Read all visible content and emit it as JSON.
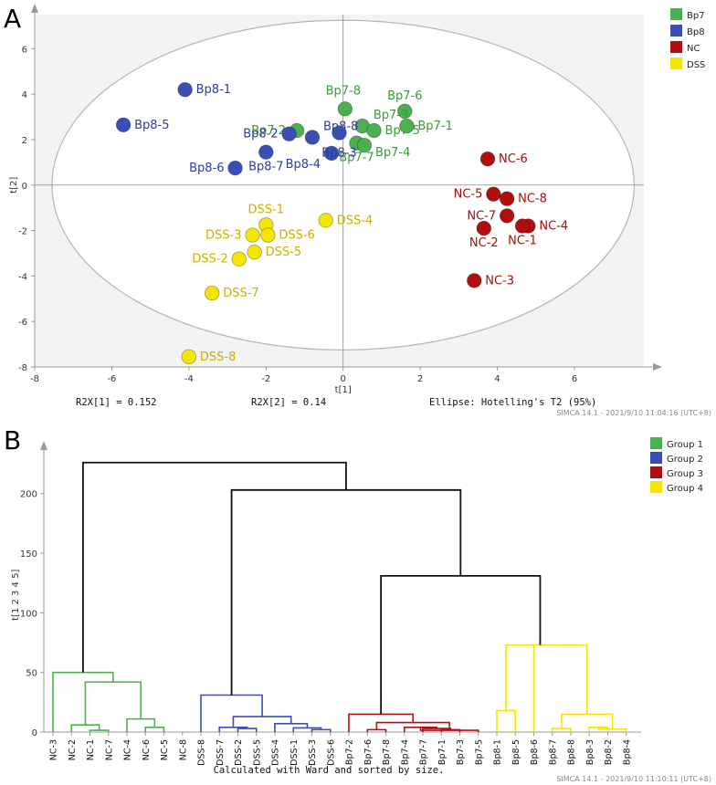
{
  "panels": {
    "a": "A",
    "b": "B"
  },
  "colors": {
    "Bp7": "#4caf50",
    "Bp8": "#3a4fb5",
    "NC": "#b00f0f",
    "DSS": "#f5e600",
    "Bp7_text": "#3a9a3a",
    "Bp8_text": "#2f3d9a",
    "NC_text": "#9c0e0e",
    "DSS_text": "#c9b000",
    "g1": "#4caf50",
    "g2": "#3a4fb5",
    "g3": "#b00f0f",
    "g4": "#f5e600",
    "root": "#111111"
  },
  "chart_data": [
    {
      "type": "scatter",
      "title": "",
      "xlabel": "t[1]",
      "ylabel": "t[2]",
      "xlim": [
        -8,
        7.8
      ],
      "ylim": [
        -8,
        7.5
      ],
      "xticks": [
        -8,
        -6,
        -4,
        -2,
        0,
        2,
        4,
        6
      ],
      "yticks": [
        -8,
        -6,
        -4,
        -2,
        0,
        2,
        4,
        6
      ],
      "ellipse": {
        "rx": 7.55,
        "ry": 7.25,
        "label": "Ellipse: Hotelling's T2 (95%)"
      },
      "stats": {
        "r2x1": "R2X[1] = 0.152",
        "r2x2": "R2X[2] = 0.14"
      },
      "footer": "SIMCA 14.1 - 2021/9/10 11:04:16 (UTC+8)",
      "legend": [
        {
          "name": "Bp7",
          "key": "Bp7"
        },
        {
          "name": "Bp8",
          "key": "Bp8"
        },
        {
          "name": "NC",
          "key": "NC"
        },
        {
          "name": "DSS",
          "key": "DSS"
        }
      ],
      "points": [
        {
          "label": "Bp7-8",
          "group": "Bp7",
          "x": 0.05,
          "y": 3.35,
          "pos": "tl"
        },
        {
          "label": "Bp7-6",
          "group": "Bp7",
          "x": 1.6,
          "y": 3.25,
          "pos": "t"
        },
        {
          "label": "Bp7 2",
          "group": "Bp7",
          "x": -1.2,
          "y": 2.4,
          "pos": "l"
        },
        {
          "label": "Bp7-3",
          "group": "Bp7",
          "x": 0.5,
          "y": 2.6,
          "pos": "tr"
        },
        {
          "label": "Bp7-5",
          "group": "Bp7",
          "x": 0.8,
          "y": 2.4,
          "pos": "r"
        },
        {
          "label": "Bp7-1",
          "group": "Bp7",
          "x": 1.65,
          "y": 2.6,
          "pos": "r"
        },
        {
          "label": "Bp7-7",
          "group": "Bp7",
          "x": 0.35,
          "y": 1.85,
          "pos": "b"
        },
        {
          "label": "Bp7-4",
          "group": "Bp7",
          "x": 0.55,
          "y": 1.75,
          "pos": "br"
        },
        {
          "label": "Bp8-1",
          "group": "Bp8",
          "x": -4.1,
          "y": 4.2,
          "pos": "r"
        },
        {
          "label": "Bp8-5",
          "group": "Bp8",
          "x": -5.7,
          "y": 2.65,
          "pos": "r"
        },
        {
          "label": "Bp8-2",
          "group": "Bp8",
          "x": -1.4,
          "y": 2.25,
          "pos": "l"
        },
        {
          "label": "Bp8-8",
          "group": "Bp8",
          "x": -0.8,
          "y": 2.1,
          "pos": "tr"
        },
        {
          "label": "Bp8-6",
          "group": "Bp8",
          "x": -2.8,
          "y": 0.75,
          "pos": "l"
        },
        {
          "label": "Bp8-7",
          "group": "Bp8",
          "x": -2.0,
          "y": 1.45,
          "pos": "b"
        },
        {
          "label": "Bp8-4",
          "group": "Bp8",
          "x": -0.3,
          "y": 1.4,
          "pos": "bl"
        },
        {
          "label": "Bp8-3",
          "group": "Bp8",
          "x": -0.1,
          "y": 2.3,
          "pos": "b2"
        },
        {
          "label": "NC-6",
          "group": "NC",
          "x": 3.75,
          "y": 1.15,
          "pos": "r"
        },
        {
          "label": "NC-5",
          "group": "NC",
          "x": 3.9,
          "y": -0.4,
          "pos": "l"
        },
        {
          "label": "NC-8",
          "group": "NC",
          "x": 4.25,
          "y": -0.6,
          "pos": "r"
        },
        {
          "label": "NC-7",
          "group": "NC",
          "x": 4.25,
          "y": -1.35,
          "pos": "l"
        },
        {
          "label": "NC-4",
          "group": "NC",
          "x": 4.8,
          "y": -1.8,
          "pos": "r"
        },
        {
          "label": "NC-2",
          "group": "NC",
          "x": 3.65,
          "y": -1.9,
          "pos": "b"
        },
        {
          "label": "NC-1",
          "group": "NC",
          "x": 4.65,
          "y": -1.8,
          "pos": "b"
        },
        {
          "label": "NC-3",
          "group": "NC",
          "x": 3.4,
          "y": -4.2,
          "pos": "r"
        },
        {
          "label": "DSS-1",
          "group": "DSS",
          "x": -2.0,
          "y": -1.75,
          "pos": "t"
        },
        {
          "label": "DSS-4",
          "group": "DSS",
          "x": -0.45,
          "y": -1.55,
          "pos": "r"
        },
        {
          "label": "DSS-3",
          "group": "DSS",
          "x": -2.35,
          "y": -2.2,
          "pos": "l"
        },
        {
          "label": "DSS-6",
          "group": "DSS",
          "x": -1.95,
          "y": -2.2,
          "pos": "r"
        },
        {
          "label": "DSS-5",
          "group": "DSS",
          "x": -2.3,
          "y": -2.95,
          "pos": "r"
        },
        {
          "label": "DSS-2",
          "group": "DSS",
          "x": -2.7,
          "y": -3.25,
          "pos": "l"
        },
        {
          "label": "DSS-7",
          "group": "DSS",
          "x": -3.4,
          "y": -4.75,
          "pos": "r"
        },
        {
          "label": "DSS-8",
          "group": "DSS",
          "x": -4.0,
          "y": -7.55,
          "pos": "r"
        }
      ]
    },
    {
      "type": "dendrogram",
      "title": "",
      "xlabel": "Calculated with Ward and sorted by size.",
      "ylabel": "t[1 2 3 4 5]",
      "ylim": [
        0,
        235
      ],
      "yticks": [
        0,
        50,
        100,
        150,
        200
      ],
      "footer": "SIMCA 14.1 - 2021/9/10 11:10:11 (UTC+8)",
      "legend": [
        {
          "name": "Group 1",
          "key": "g1"
        },
        {
          "name": "Group 2",
          "key": "g2"
        },
        {
          "name": "Group 3",
          "key": "g3"
        },
        {
          "name": "Group 4",
          "key": "g4"
        }
      ],
      "leaves": [
        {
          "label": "NC-3",
          "group": "g1"
        },
        {
          "label": "NC-2",
          "group": "g1"
        },
        {
          "label": "NC-1",
          "group": "g1"
        },
        {
          "label": "NC-7",
          "group": "g1"
        },
        {
          "label": "NC-4",
          "group": "g1"
        },
        {
          "label": "NC-6",
          "group": "g1"
        },
        {
          "label": "NC-5",
          "group": "g1"
        },
        {
          "label": "NC-8",
          "group": "g1"
        },
        {
          "label": "DSS-8",
          "group": "g2"
        },
        {
          "label": "DSS-7",
          "group": "g2"
        },
        {
          "label": "DSS-2",
          "group": "g2"
        },
        {
          "label": "DSS-5",
          "group": "g2"
        },
        {
          "label": "DSS-4",
          "group": "g2"
        },
        {
          "label": "DSS-1",
          "group": "g2"
        },
        {
          "label": "DSS-3",
          "group": "g2"
        },
        {
          "label": "DSS-6",
          "group": "g2"
        },
        {
          "label": "Bp7-2",
          "group": "g3"
        },
        {
          "label": "Bp7-6",
          "group": "g3"
        },
        {
          "label": "Bp7-8",
          "group": "g3"
        },
        {
          "label": "Bp7-4",
          "group": "g3"
        },
        {
          "label": "Bp7-7",
          "group": "g3"
        },
        {
          "label": "Bp7-1",
          "group": "g3"
        },
        {
          "label": "Bp7-3",
          "group": "g3"
        },
        {
          "label": "Bp7-5",
          "group": "g3"
        },
        {
          "label": "Bp8-1",
          "group": "g4"
        },
        {
          "label": "Bp8-5",
          "group": "g4"
        },
        {
          "label": "Bp8-6",
          "group": "g4"
        },
        {
          "label": "Bp8-7",
          "group": "g4"
        },
        {
          "label": "Bp8-8",
          "group": "g4"
        },
        {
          "label": "Bp8-3",
          "group": "g4"
        },
        {
          "label": "Bp8-2",
          "group": "g4"
        },
        {
          "label": "Bp8-4",
          "group": "g4"
        }
      ],
      "merges": [
        {
          "a": "L5",
          "b": "L6",
          "h": 4,
          "g": "g1"
        },
        {
          "a": "L2",
          "b": "L3",
          "h": 1.5,
          "g": "g1"
        },
        {
          "a": "L1",
          "b": "M1",
          "h": 6,
          "g": "g1"
        },
        {
          "a": "L4",
          "b": "M0",
          "h": 11,
          "g": "g1"
        },
        {
          "a": "M2",
          "b": "M3",
          "h": 42,
          "g": "g1"
        },
        {
          "a": "L0",
          "b": "M4",
          "h": 50,
          "g": "g1"
        },
        {
          "a": "L10",
          "b": "L11",
          "h": 3,
          "g": "g2"
        },
        {
          "a": "L14",
          "b": "L15",
          "h": 2,
          "g": "g2"
        },
        {
          "a": "L13",
          "b": "M7",
          "h": 3.5,
          "g": "g2"
        },
        {
          "a": "L12",
          "b": "M8",
          "h": 7,
          "g": "g2"
        },
        {
          "a": "L9",
          "b": "M6",
          "h": 4,
          "g": "g2"
        },
        {
          "a": "M10",
          "b": "M9",
          "h": 13,
          "g": "g2"
        },
        {
          "a": "L8",
          "b": "M11",
          "h": 31,
          "g": "g2"
        },
        {
          "a": "L21",
          "b": "L22",
          "h": 2,
          "g": "g3"
        },
        {
          "a": "L20",
          "b": "M13",
          "h": 3,
          "g": "g3"
        },
        {
          "a": "L19",
          "b": "M14",
          "h": 4,
          "g": "g3"
        },
        {
          "a": "M15",
          "b": "L23",
          "h": 1.5,
          "g": "g3"
        },
        {
          "a": "L17",
          "b": "L18",
          "h": 2,
          "g": "g3"
        },
        {
          "a": "M17",
          "b": "M16",
          "h": 8,
          "g": "g3"
        },
        {
          "a": "L16",
          "b": "M18",
          "h": 15,
          "g": "g3"
        },
        {
          "a": "L29",
          "b": "L30",
          "h": 4,
          "g": "g4"
        },
        {
          "a": "M20",
          "b": "L31",
          "h": 2.5,
          "g": "g4"
        },
        {
          "a": "L27",
          "b": "L28",
          "h": 3,
          "g": "g4"
        },
        {
          "a": "M22",
          "b": "M21",
          "h": 15,
          "g": "g4"
        },
        {
          "a": "L24",
          "b": "L25",
          "h": 18,
          "g": "g4"
        },
        {
          "a": "M24",
          "b": "M23",
          "h": 73,
          "g": "g4"
        },
        {
          "a": "L26",
          "b": "M25",
          "h": 73,
          "g": "g4"
        },
        {
          "a": "M19",
          "b": "M26",
          "h": 131,
          "g": "root"
        },
        {
          "a": "M12",
          "b": "M27",
          "h": 203,
          "g": "root"
        },
        {
          "a": "M5",
          "b": "M28",
          "h": 226,
          "g": "root"
        }
      ]
    }
  ]
}
